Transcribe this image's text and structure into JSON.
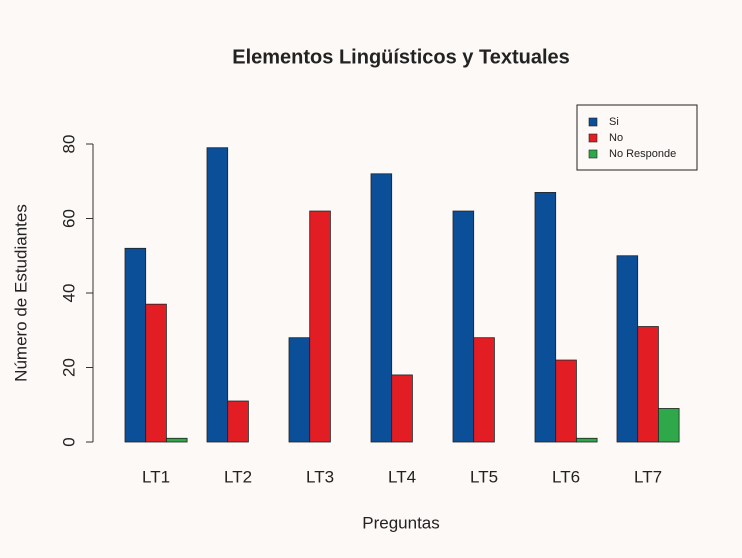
{
  "chart_data": {
    "type": "bar",
    "title": "Elementos Lingüísticos y Textuales",
    "x_label": "Preguntas",
    "y_label": "Número de Estudiantes",
    "categories": [
      "LT1",
      "LT2",
      "LT3",
      "LT4",
      "LT5",
      "LT6",
      "LT7"
    ],
    "series": [
      {
        "name": "Si",
        "color": "#0a4f97",
        "values": [
          52,
          79,
          28,
          72,
          62,
          67,
          50
        ]
      },
      {
        "name": "No",
        "color": "#e31d24",
        "values": [
          37,
          11,
          62,
          18,
          28,
          22,
          31
        ]
      },
      {
        "name": "No Responde",
        "color": "#2fa84a",
        "values": [
          1,
          0,
          0,
          0,
          0,
          1,
          9
        ]
      }
    ],
    "ylim": [
      0,
      80
    ],
    "yticks": [
      0,
      20,
      40,
      60,
      80
    ],
    "legend": "top-right"
  }
}
